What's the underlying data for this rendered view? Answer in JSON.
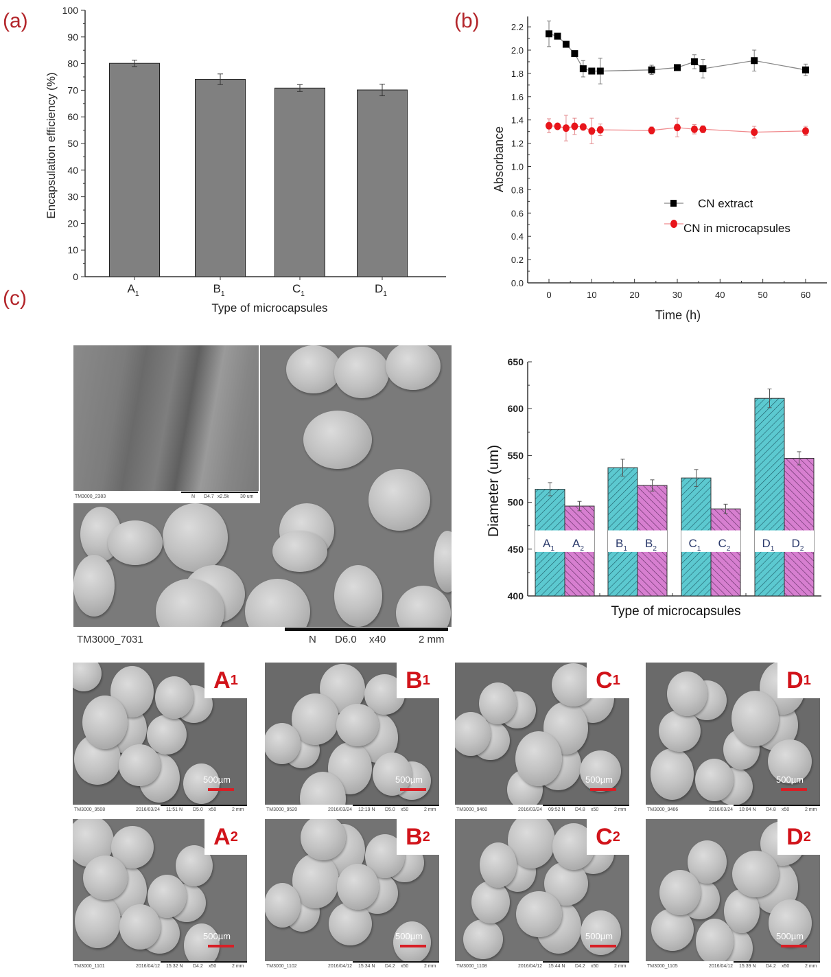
{
  "panels": {
    "a_label": "(a)",
    "b_label": "(b)",
    "c_label": "(c)"
  },
  "chart_data": [
    {
      "id": "a",
      "type": "bar",
      "title": "",
      "xlabel": "Type of microcapsules",
      "ylabel": "Encapsulation efficiency (%)",
      "categories": [
        "A1",
        "B1",
        "C1",
        "D1"
      ],
      "values": [
        80.1,
        74.1,
        70.8,
        70.1
      ],
      "errors": [
        1.2,
        2.0,
        1.3,
        2.2
      ],
      "ylim": [
        0,
        100
      ],
      "yticks": [
        0,
        10,
        20,
        30,
        40,
        50,
        60,
        70,
        80,
        90,
        100
      ],
      "bar_color": "#808080",
      "grid": false
    },
    {
      "id": "b",
      "type": "line",
      "title": "",
      "xlabel": "Time (h)",
      "ylabel": "Absorbance",
      "xlim": [
        -5,
        65
      ],
      "ylim": [
        0,
        2.3
      ],
      "xticks": [
        0,
        10,
        20,
        30,
        40,
        50,
        60
      ],
      "yticks": [
        "0.0",
        "0.2",
        "0.4",
        "0.6",
        "0.8",
        "1.0",
        "1.2",
        "1.4",
        "1.6",
        "1.8",
        "2.0",
        "2.2"
      ],
      "x": [
        0,
        2,
        4,
        6,
        8,
        10,
        12,
        24,
        30,
        34,
        36,
        48,
        60
      ],
      "series": [
        {
          "name": "CN extract",
          "marker": "square",
          "color": "#000000",
          "line_color": "#888888",
          "values": [
            2.14,
            2.12,
            2.05,
            1.97,
            1.84,
            1.82,
            1.82,
            1.83,
            1.85,
            1.9,
            1.84,
            1.91,
            1.83
          ],
          "errors": [
            0.11,
            0.02,
            0.02,
            0.02,
            0.07,
            0.02,
            0.11,
            0.04,
            0.02,
            0.06,
            0.08,
            0.09,
            0.05
          ]
        },
        {
          "name": "CN in microcapsules",
          "marker": "circle",
          "color": "#e8151b",
          "line_color": "#f08a8d",
          "values": [
            1.35,
            1.345,
            1.33,
            1.345,
            1.34,
            1.305,
            1.315,
            1.31,
            1.335,
            1.32,
            1.32,
            1.295,
            1.305
          ],
          "errors": [
            0.06,
            0.02,
            0.11,
            0.07,
            0.02,
            0.11,
            0.05,
            0.03,
            0.08,
            0.04,
            0.03,
            0.05,
            0.04
          ]
        }
      ],
      "legend_position": "lower right",
      "grid": false
    },
    {
      "id": "c-diameter",
      "type": "bar",
      "title": "",
      "xlabel": "Type of microcapsules",
      "ylabel": "Diameter (um)",
      "groups": [
        "A",
        "B",
        "C",
        "D"
      ],
      "categories": [
        "A1",
        "A2",
        "B1",
        "B2",
        "C1",
        "C2",
        "D1",
        "D2"
      ],
      "series": [
        {
          "name": "1 (cyan hatched)",
          "color": "#5cc9d0",
          "values": [
            514,
            537,
            526,
            611
          ],
          "errors": [
            7,
            9,
            9,
            10
          ]
        },
        {
          "name": "2 (magenta hatched)",
          "color": "#d77fd0",
          "values": [
            496,
            518,
            493,
            547
          ],
          "errors": [
            5,
            6,
            5,
            7
          ]
        }
      ],
      "bar_labels": [
        [
          "A1",
          "A2"
        ],
        [
          "B1",
          "B2"
        ],
        [
          "C1",
          "C2"
        ],
        [
          "D1",
          "D2"
        ]
      ],
      "ylim": [
        400,
        650
      ],
      "yticks": [
        400,
        450,
        500,
        550,
        600,
        650
      ],
      "grid": false
    }
  ],
  "sem_main": {
    "image_id": "TM3000_7031",
    "meta": [
      "N",
      "D6.0",
      "x40",
      "2 mm"
    ],
    "inset": {
      "image_id": "TM3000_2383",
      "meta": [
        "N",
        "D4.7",
        "x2.5k",
        "30 um"
      ]
    }
  },
  "sem_grid": [
    {
      "tag": "A",
      "sub": "1",
      "id": "TM3000_9508",
      "date": "2016/03/24",
      "time": "11:51",
      "n": "N",
      "d": "D5.0",
      "mag": "x50",
      "scale": "2 mm",
      "scalebar": "500µm"
    },
    {
      "tag": "B",
      "sub": "1",
      "id": "TM3000_9520",
      "date": "2016/03/24",
      "time": "12:19",
      "n": "N",
      "d": "D5.0",
      "mag": "x50",
      "scale": "2 mm",
      "scalebar": "500µm"
    },
    {
      "tag": "C",
      "sub": "1",
      "id": "TM3000_9460",
      "date": "2016/03/24",
      "time": "09:52",
      "n": "N",
      "d": "D4.8",
      "mag": "x50",
      "scale": "2 mm",
      "scalebar": "500µm"
    },
    {
      "tag": "D",
      "sub": "1",
      "id": "TM3000_9466",
      "date": "2016/03/24",
      "time": "10:04",
      "n": "N",
      "d": "D4.8",
      "mag": "x50",
      "scale": "2 mm",
      "scalebar": "500µm"
    },
    {
      "tag": "A",
      "sub": "2",
      "id": "TM3000_1101",
      "date": "2016/04/12",
      "time": "15:32",
      "n": "N",
      "d": "D4.2",
      "mag": "x50",
      "scale": "2 mm",
      "scalebar": "500µm"
    },
    {
      "tag": "B",
      "sub": "2",
      "id": "TM3000_1102",
      "date": "2016/04/12",
      "time": "15:34",
      "n": "N",
      "d": "D4.2",
      "mag": "x50",
      "scale": "2 mm",
      "scalebar": "500µm"
    },
    {
      "tag": "C",
      "sub": "2",
      "id": "TM3000_1108",
      "date": "2016/04/12",
      "time": "15:44",
      "n": "N",
      "d": "D4.2",
      "mag": "x50",
      "scale": "2 mm",
      "scalebar": "500µm"
    },
    {
      "tag": "D",
      "sub": "2",
      "id": "TM3000_1105",
      "date": "2016/04/12",
      "time": "15:39",
      "n": "N",
      "d": "D4.2",
      "mag": "x50",
      "scale": "2 mm",
      "scalebar": "500µm"
    }
  ]
}
